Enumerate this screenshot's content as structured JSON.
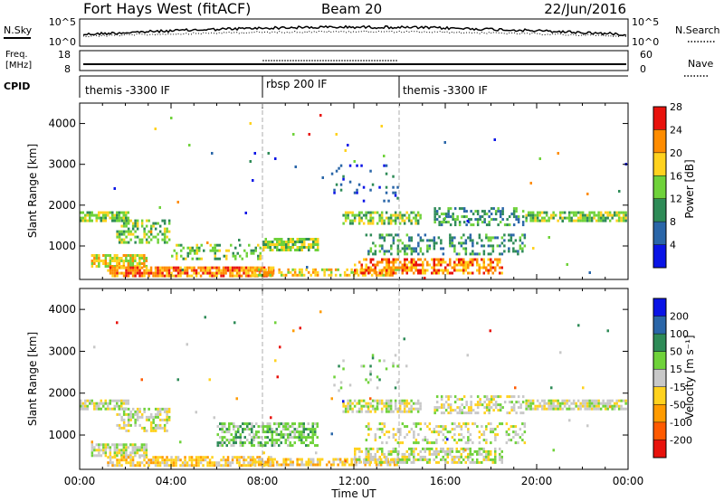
{
  "header": {
    "station": "Fort Hays West (fitACF)",
    "beam": "Beam 20",
    "date": "22/Jun/2016"
  },
  "top_panels": {
    "nsky_label": "N.Sky",
    "nsky_ticks": [
      "10^5",
      "10^0"
    ],
    "nsearch_label": "N.Search",
    "nsearch_ticks": [
      "10^5",
      "10^0"
    ],
    "freq_label": "Freq.",
    "freq_unit": "[MHz]",
    "freq_ticks": [
      "18",
      "8"
    ],
    "nave_label": "Nave",
    "nave_ticks": [
      "60",
      "0"
    ],
    "cpid_label": "CPID",
    "cpid_segments": [
      {
        "label": "themis -3300 IF",
        "start_h": 0,
        "end_h": 8
      },
      {
        "label": "rbsp 200 IF",
        "start_h": 8,
        "end_h": 14
      },
      {
        "label": "themis -3300 IF",
        "start_h": 14,
        "end_h": 24
      }
    ]
  },
  "chart_data": [
    {
      "type": "heatmap",
      "panel": "power",
      "ylabel": "Slant Range [km]",
      "y_ticks": [
        "1000",
        "2000",
        "3000",
        "4000"
      ],
      "ylim": [
        180,
        4500
      ],
      "xlim": [
        0,
        24
      ],
      "colorbar_label": "Power [dB]",
      "colorbar_ticks": [
        "4",
        "8",
        "12",
        "16",
        "20",
        "24",
        "28"
      ],
      "colorbar_colors": [
        "#0a14e6",
        "#2a66a8",
        "#2e8b57",
        "#6fd23a",
        "#ffd21e",
        "#ff8c00",
        "#e8120c"
      ],
      "scatter_bands": [
        {
          "t0": 0.0,
          "t1": 2.2,
          "r0": 1600,
          "r1": 1850,
          "level": 3,
          "density": 0.75
        },
        {
          "t0": 1.6,
          "t1": 4.0,
          "r0": 1050,
          "r1": 1650,
          "level": 3,
          "density": 0.5
        },
        {
          "t0": 0.5,
          "t1": 3.0,
          "r0": 450,
          "r1": 800,
          "level": 4,
          "density": 0.8
        },
        {
          "t0": 1.2,
          "t1": 8.5,
          "r0": 250,
          "r1": 500,
          "level": 5,
          "density": 0.8
        },
        {
          "t0": 4.0,
          "t1": 8.0,
          "r0": 650,
          "r1": 1050,
          "level": 3,
          "density": 0.35
        },
        {
          "t0": 8.0,
          "t1": 10.5,
          "r0": 900,
          "r1": 1200,
          "level": 3,
          "density": 0.8
        },
        {
          "t0": 7.5,
          "t1": 14.0,
          "r0": 250,
          "r1": 450,
          "level": 4,
          "density": 0.6
        },
        {
          "t0": 12.0,
          "t1": 18.5,
          "r0": 300,
          "r1": 700,
          "level": 5,
          "density": 0.6
        },
        {
          "t0": 11.5,
          "t1": 15.0,
          "r0": 1550,
          "r1": 1850,
          "level": 3,
          "density": 0.6
        },
        {
          "t0": 12.5,
          "t1": 19.5,
          "r0": 800,
          "r1": 1300,
          "level": 2,
          "density": 0.3
        },
        {
          "t0": 15.5,
          "t1": 19.5,
          "r0": 1500,
          "r1": 1950,
          "level": 2,
          "density": 0.45
        },
        {
          "t0": 19.5,
          "t1": 24.0,
          "r0": 1600,
          "r1": 1850,
          "level": 3,
          "density": 0.75
        },
        {
          "t0": 11.0,
          "t1": 14.0,
          "r0": 2000,
          "r1": 3000,
          "level": 1,
          "density": 0.06
        },
        {
          "t0": 0.0,
          "t1": 24.0,
          "r0": 200,
          "r1": 4300,
          "level": 2,
          "density": 0.003
        }
      ]
    },
    {
      "type": "heatmap",
      "panel": "velocity",
      "ylabel": "Slant Range [km]",
      "y_ticks": [
        "1000",
        "2000",
        "3000",
        "4000"
      ],
      "ylim": [
        180,
        4500
      ],
      "xlim": [
        0,
        24
      ],
      "x_ticks": [
        "00:00",
        "04:00",
        "08:00",
        "12:00",
        "16:00",
        "20:00",
        "00:00"
      ],
      "xlabel": "Time UT",
      "colorbar_label": "Velocity [m s⁻¹]",
      "colorbar_ticks": [
        "-200",
        "-100",
        "-50",
        "-15",
        "15",
        "50",
        "100",
        "200"
      ],
      "colorbar_colors": [
        "#e8120c",
        "#ff5a00",
        "#ff9b00",
        "#ffd21e",
        "#c8c8c8",
        "#6fd23a",
        "#2e8b57",
        "#2a66a8",
        "#0a14e6"
      ],
      "scatter_bands": [
        {
          "t0": 0.0,
          "t1": 2.2,
          "r0": 1600,
          "r1": 1850,
          "level": 4,
          "density": 0.75
        },
        {
          "t0": 1.6,
          "t1": 4.0,
          "r0": 1050,
          "r1": 1650,
          "level": 4,
          "density": 0.5
        },
        {
          "t0": 0.5,
          "t1": 3.0,
          "r0": 450,
          "r1": 800,
          "level": 4,
          "density": 0.8
        },
        {
          "t0": 1.2,
          "t1": 8.5,
          "r0": 250,
          "r1": 500,
          "level": 3,
          "density": 0.7
        },
        {
          "t0": 6.0,
          "t1": 10.5,
          "r0": 700,
          "r1": 1300,
          "level": 5,
          "density": 0.6
        },
        {
          "t0": 7.5,
          "t1": 14.0,
          "r0": 250,
          "r1": 450,
          "level": 3,
          "density": 0.6
        },
        {
          "t0": 12.0,
          "t1": 18.5,
          "r0": 300,
          "r1": 700,
          "level": 4,
          "density": 0.6
        },
        {
          "t0": 11.5,
          "t1": 15.0,
          "r0": 1550,
          "r1": 1850,
          "level": 4,
          "density": 0.6
        },
        {
          "t0": 12.5,
          "t1": 19.5,
          "r0": 800,
          "r1": 1300,
          "level": 4,
          "density": 0.3
        },
        {
          "t0": 15.5,
          "t1": 19.5,
          "r0": 1500,
          "r1": 1950,
          "level": 4,
          "density": 0.45
        },
        {
          "t0": 19.5,
          "t1": 24.0,
          "r0": 1600,
          "r1": 1850,
          "level": 4,
          "density": 0.75
        },
        {
          "t0": 11.0,
          "t1": 14.0,
          "r0": 2000,
          "r1": 3000,
          "level": 5,
          "density": 0.06
        },
        {
          "t0": 0.0,
          "t1": 24.0,
          "r0": 200,
          "r1": 4300,
          "level": 8,
          "density": 0.003
        }
      ]
    }
  ]
}
